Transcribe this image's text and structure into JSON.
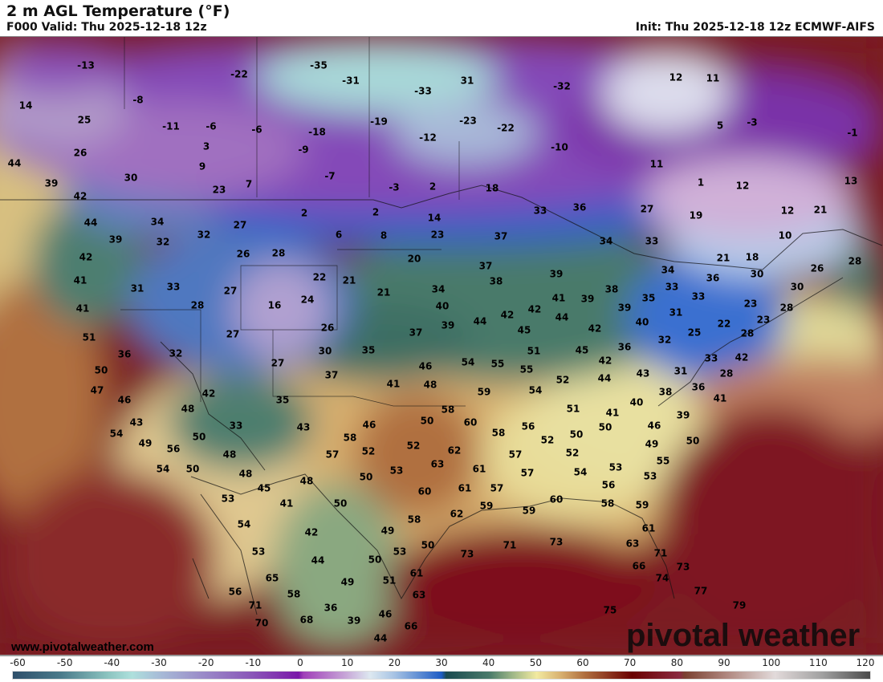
{
  "header": {
    "title": "2 m AGL Temperature (°F)",
    "valid": "F000 Valid: Thu 2025-12-18 12z",
    "init": "Init: Thu 2025-12-18 12z ECMWF-AIFS"
  },
  "footer": {
    "site": "www.pivotalweather.com",
    "watermark": "pivotal weather"
  },
  "colorbar": {
    "ticks": [
      "-60",
      "-50",
      "-40",
      "-30",
      "-20",
      "-10",
      "0",
      "10",
      "20",
      "30",
      "40",
      "50",
      "60",
      "70",
      "80",
      "90",
      "100",
      "110",
      "120"
    ],
    "stops": [
      {
        "t": -60,
        "c": "#2e4f6a"
      },
      {
        "t": -50,
        "c": "#4a7a8a"
      },
      {
        "t": -40,
        "c": "#8cc4c0"
      },
      {
        "t": -35,
        "c": "#aee0dc"
      },
      {
        "t": -30,
        "c": "#a8c0d8"
      },
      {
        "t": -20,
        "c": "#9a8ac8"
      },
      {
        "t": -10,
        "c": "#8a58b8"
      },
      {
        "t": 0,
        "c": "#7a18a8"
      },
      {
        "t": 1,
        "c": "#a040b8"
      },
      {
        "t": 10,
        "c": "#c8a8d8"
      },
      {
        "t": 15,
        "c": "#dde8f0"
      },
      {
        "t": 20,
        "c": "#a8c4e4"
      },
      {
        "t": 30,
        "c": "#1e5cc4"
      },
      {
        "t": 31,
        "c": "#1a4a50"
      },
      {
        "t": 40,
        "c": "#4a7a6a"
      },
      {
        "t": 45,
        "c": "#a0b888"
      },
      {
        "t": 50,
        "c": "#f2eaa0"
      },
      {
        "t": 55,
        "c": "#d8b070"
      },
      {
        "t": 60,
        "c": "#b07040"
      },
      {
        "t": 70,
        "c": "#6a0000"
      },
      {
        "t": 80,
        "c": "#8a2a40"
      },
      {
        "t": 81,
        "c": "#7a4030"
      },
      {
        "t": 90,
        "c": "#b08880"
      },
      {
        "t": 100,
        "c": "#e2dada"
      },
      {
        "t": 110,
        "c": "#a0a0a0"
      },
      {
        "t": 120,
        "c": "#4a4a4a"
      }
    ]
  },
  "temps": [
    "-13",
    "-22",
    "-35",
    "-31",
    "-33",
    "31",
    "-32",
    "12",
    "11",
    "14",
    "-8",
    "25",
    "-11",
    "-6",
    "-6",
    "-18",
    "-19",
    "-23",
    "-22",
    "5",
    "-3",
    "-1",
    "26",
    "3",
    "-9",
    "-12",
    "-10",
    "44",
    "9",
    "11",
    "30",
    "39",
    "23",
    "7",
    "-7",
    "-3",
    "2",
    "18",
    "1",
    "12",
    "13",
    "42",
    "44",
    "34",
    "27",
    "2",
    "2",
    "14",
    "33",
    "36",
    "27",
    "19",
    "12",
    "21",
    "39",
    "32",
    "32",
    "6",
    "8",
    "23",
    "37",
    "34",
    "33",
    "10",
    "42",
    "26",
    "28",
    "20",
    "37",
    "21",
    "18",
    "26",
    "28",
    "41",
    "31",
    "33",
    "27",
    "22",
    "21",
    "38",
    "39",
    "34",
    "36",
    "30",
    "30",
    "16",
    "24",
    "21",
    "34",
    "41",
    "39",
    "38",
    "35",
    "33",
    "33",
    "23",
    "41",
    "28",
    "40",
    "42",
    "42",
    "44",
    "39",
    "31",
    "28",
    "51",
    "27",
    "26",
    "37",
    "39",
    "44",
    "45",
    "42",
    "40",
    "25",
    "22",
    "28",
    "23",
    "32",
    "36",
    "32",
    "30",
    "35",
    "51",
    "45",
    "36",
    "42",
    "33",
    "50",
    "27",
    "37",
    "46",
    "54",
    "55",
    "55",
    "42",
    "44",
    "43",
    "31",
    "28",
    "52",
    "41",
    "48",
    "47",
    "46",
    "42",
    "35",
    "59",
    "54",
    "38",
    "36",
    "41",
    "48",
    "58",
    "51",
    "41",
    "40",
    "39",
    "43",
    "33",
    "43",
    "46",
    "50",
    "60",
    "56",
    "46",
    "54",
    "50",
    "58",
    "52",
    "58",
    "52",
    "50",
    "50",
    "49",
    "50",
    "49",
    "56",
    "48",
    "57",
    "52",
    "62",
    "57",
    "52",
    "53",
    "55",
    "54",
    "50",
    "48",
    "53",
    "63",
    "61",
    "57",
    "54",
    "53",
    "45",
    "48",
    "50",
    "60",
    "61",
    "57",
    "56",
    "53",
    "41",
    "50",
    "59",
    "60",
    "58",
    "59",
    "62",
    "59",
    "54",
    "42",
    "49",
    "58",
    "61",
    "53",
    "53",
    "50",
    "73",
    "71",
    "73",
    "63",
    "71",
    "44",
    "50",
    "66",
    "73",
    "65",
    "49",
    "51",
    "61",
    "74",
    "56",
    "58",
    "63",
    "77",
    "71",
    "36",
    "46",
    "79",
    "70",
    "68",
    "39",
    "66",
    "75",
    "44"
  ]
}
